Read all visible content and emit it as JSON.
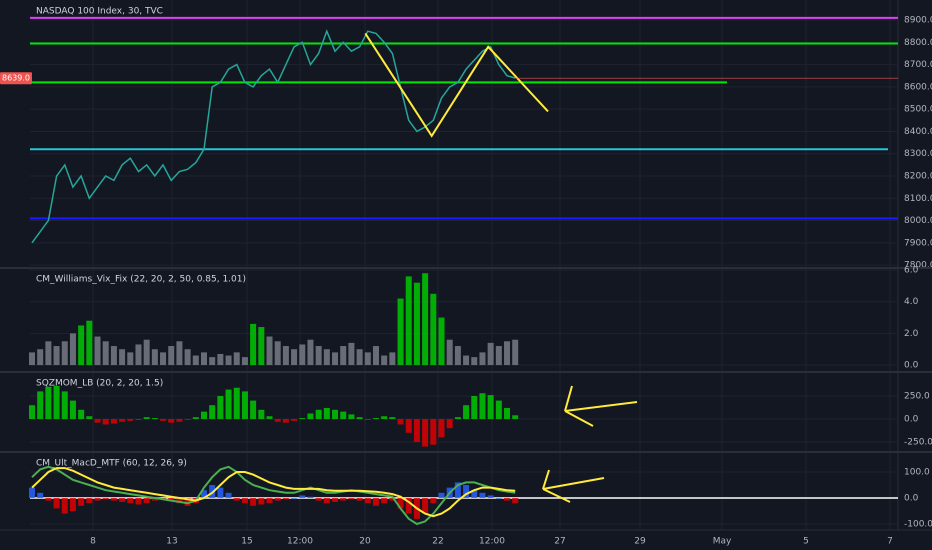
{
  "chart_data": [
    {
      "type": "line",
      "title": "NASDAQ 100 Index, 30, TVC",
      "color": "#26a69a",
      "values": [
        7900,
        7950,
        8000,
        8200,
        8250,
        8150,
        8200,
        8100,
        8150,
        8200,
        8180,
        8250,
        8280,
        8220,
        8250,
        8200,
        8250,
        8180,
        8220,
        8230,
        8260,
        8320,
        8600,
        8620,
        8680,
        8700,
        8620,
        8600,
        8650,
        8680,
        8620,
        8700,
        8780,
        8800,
        8700,
        8750,
        8850,
        8760,
        8800,
        8760,
        8780,
        8850,
        8840,
        8800,
        8750,
        8600,
        8450,
        8400,
        8420,
        8450,
        8550,
        8600,
        8620,
        8680,
        8720,
        8760,
        8780,
        8700,
        8650,
        8640
      ],
      "ylim": [
        7787,
        8990
      ],
      "yticks": [
        {
          "value": 7800,
          "label": "7800.0"
        },
        {
          "value": 7900,
          "label": "7900.0"
        },
        {
          "value": 8000,
          "label": "8000.0"
        },
        {
          "value": 8100,
          "label": "8100.0"
        },
        {
          "value": 8200,
          "label": "8200.0"
        },
        {
          "value": 8300,
          "label": "8300.0"
        },
        {
          "value": 8400,
          "label": "8400.0"
        },
        {
          "value": 8500,
          "label": "8500.0"
        },
        {
          "value": 8600,
          "label": "8600.0"
        },
        {
          "value": 8700,
          "label": "8700.0"
        },
        {
          "value": 8800,
          "label": "8800.0"
        },
        {
          "value": 8900,
          "label": "8900.0"
        }
      ],
      "grid": true,
      "levels": [
        {
          "value": 8910,
          "color": "#e040fb"
        },
        {
          "value": 8795,
          "color": "#00e600"
        },
        {
          "value": 8620,
          "color": "#00e600"
        },
        {
          "value": 8320,
          "color": "#26c6da"
        },
        {
          "value": 8010,
          "color": "#1a1aff"
        }
      ],
      "last_price": {
        "value": 8639,
        "label": "8639.0"
      },
      "trend_lines": [
        {
          "color": "#ffeb3b",
          "x": [
            40.7,
            48.8,
            55.7,
            63
          ],
          "values": [
            8840,
            8380,
            8780,
            8490
          ]
        }
      ]
    },
    {
      "type": "bar",
      "title": "CM_Williams_Vix_Fix (22, 20, 2, 50, 0.85, 1.01)",
      "series": [
        {
          "color": "#787b86",
          "values": [
            0.8,
            1.0,
            1.5,
            1.2,
            1.5,
            2.0,
            null,
            null,
            1.8,
            1.5,
            1.2,
            1.0,
            0.8,
            1.3,
            1.6,
            1.0,
            0.8,
            1.2,
            1.5,
            1.0,
            0.6,
            0.8,
            0.5,
            0.7,
            0.6,
            0.8,
            0.5,
            null,
            null,
            1.8,
            1.5,
            1.2,
            1.0,
            1.3,
            1.6,
            1.2,
            1.0,
            0.8,
            1.2,
            1.4,
            1.0,
            0.8,
            1.2,
            0.6,
            0.8,
            null,
            null,
            null,
            null,
            null,
            null,
            1.6,
            1.2,
            0.6,
            0.5,
            0.8,
            1.4,
            1.2,
            1.5,
            1.6
          ]
        },
        {
          "color": "#00c800",
          "values": [
            null,
            null,
            null,
            null,
            null,
            null,
            2.5,
            2.8,
            null,
            null,
            null,
            null,
            null,
            null,
            null,
            null,
            null,
            null,
            null,
            null,
            null,
            null,
            null,
            null,
            null,
            null,
            null,
            2.6,
            2.4,
            null,
            null,
            null,
            null,
            null,
            null,
            null,
            null,
            null,
            null,
            null,
            null,
            null,
            null,
            null,
            null,
            4.2,
            5.6,
            5.2,
            5.8,
            4.5,
            3.0,
            null,
            null,
            null,
            null,
            null,
            null,
            null,
            null,
            null
          ]
        }
      ],
      "ylim": [
        -0.44,
        6.13
      ],
      "yticks": [
        {
          "value": 0,
          "label": "0.0"
        },
        {
          "value": 2,
          "label": "2.0"
        },
        {
          "value": 4,
          "label": "4.0"
        },
        {
          "value": 6,
          "label": "6.0"
        }
      ],
      "grid": true
    },
    {
      "type": "bar",
      "title": "SQZMOM_LB (20, 2, 20, 1.5)",
      "series": [
        {
          "color": "#00c800",
          "negative_color": "#e00000",
          "values": [
            150,
            300,
            350,
            360,
            300,
            200,
            100,
            30,
            -40,
            -60,
            -50,
            -30,
            -20,
            0,
            20,
            10,
            -20,
            -40,
            -30,
            -10,
            20,
            80,
            150,
            250,
            320,
            340,
            300,
            200,
            100,
            30,
            -30,
            -40,
            -20,
            10,
            60,
            100,
            120,
            100,
            80,
            50,
            20,
            0,
            10,
            30,
            20,
            -60,
            -150,
            -250,
            -300,
            -280,
            -200,
            -100,
            20,
            150,
            250,
            280,
            260,
            200,
            120,
            40
          ]
        }
      ],
      "ylim": [
        -359,
        511
      ],
      "yticks": [
        {
          "value": -250,
          "label": "-250.0"
        },
        {
          "value": 0,
          "label": "0.0"
        },
        {
          "value": 250,
          "label": "250.0"
        }
      ],
      "grid": true
    },
    {
      "type": "bar",
      "title": "CM_Ult_MacD_MTF (60, 12, 26, 9)",
      "series": [
        {
          "color": "#2962ff",
          "negative_color": "#e00000",
          "values": [
            40,
            20,
            -10,
            -40,
            -60,
            -50,
            -30,
            -20,
            -10,
            -5,
            -10,
            -15,
            -20,
            -25,
            -20,
            -10,
            -5,
            -10,
            -20,
            -30,
            -20,
            30,
            50,
            40,
            20,
            -10,
            -20,
            -30,
            -25,
            -20,
            -10,
            -5,
            0,
            10,
            5,
            -10,
            -20,
            -15,
            -10,
            -5,
            -10,
            -20,
            -30,
            -20,
            -10,
            -40,
            -60,
            -80,
            -60,
            -20,
            20,
            40,
            60,
            50,
            30,
            20,
            10,
            0,
            -10,
            -20
          ]
        },
        {
          "style": "line",
          "color": "#4caf50",
          "values": [
            80,
            110,
            120,
            110,
            90,
            70,
            60,
            50,
            40,
            30,
            25,
            20,
            15,
            10,
            5,
            0,
            -5,
            -10,
            -15,
            -20,
            -10,
            40,
            80,
            110,
            120,
            100,
            70,
            50,
            40,
            30,
            25,
            20,
            20,
            30,
            40,
            30,
            20,
            20,
            25,
            30,
            25,
            20,
            15,
            10,
            5,
            -40,
            -80,
            -100,
            -90,
            -60,
            -20,
            20,
            50,
            60,
            60,
            50,
            40,
            30,
            25,
            20
          ]
        },
        {
          "style": "line",
          "color": "#ffeb3b",
          "values": [
            40,
            70,
            100,
            115,
            115,
            105,
            90,
            75,
            60,
            50,
            40,
            35,
            30,
            25,
            20,
            15,
            10,
            5,
            0,
            -5,
            -10,
            0,
            20,
            50,
            80,
            100,
            100,
            90,
            75,
            60,
            50,
            40,
            35,
            35,
            35,
            35,
            30,
            28,
            28,
            28,
            28,
            26,
            24,
            20,
            15,
            5,
            -15,
            -40,
            -60,
            -70,
            -60,
            -40,
            -10,
            15,
            30,
            40,
            40,
            35,
            30,
            28
          ]
        }
      ],
      "ylim": [
        -123,
        177
      ],
      "yticks": [
        {
          "value": -100,
          "label": "-100.0"
        },
        {
          "value": 0,
          "label": "0.0"
        },
        {
          "value": 100,
          "label": "100.0"
        }
      ],
      "grid": true,
      "zero_line": {
        "value": 0,
        "color": "#ffffff"
      }
    }
  ],
  "time_axis": {
    "labels": [
      "8",
      "13",
      "15",
      "12:00",
      "20",
      "22",
      "12:00",
      "27",
      "29",
      "May",
      "5",
      "7"
    ]
  }
}
